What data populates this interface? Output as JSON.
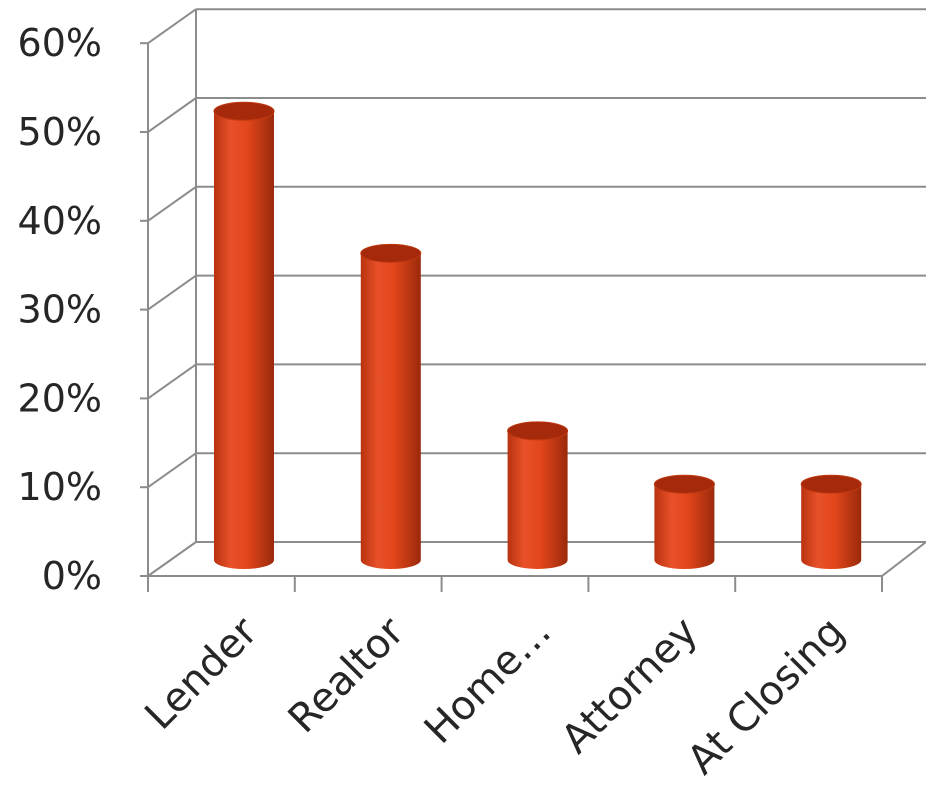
{
  "chart_data": {
    "type": "bar",
    "style": "3d-cylinder",
    "categories": [
      "Lender",
      "Realtor",
      "Home…",
      "Attorney",
      "At Closing"
    ],
    "values": [
      52,
      36,
      16,
      10,
      10
    ],
    "yunit": "%",
    "ylim": [
      0,
      60
    ],
    "yticks": [
      0,
      10,
      20,
      30,
      40,
      50,
      60
    ],
    "ytick_labels": [
      "0%",
      "10%",
      "20%",
      "30%",
      "40%",
      "50%",
      "60%"
    ],
    "grid": true,
    "legend": "none",
    "colors": {
      "bar": "#e04a1e",
      "bar_dark": "#a52a0c",
      "bar_light": "#ee6a3c",
      "grid": "#8c8c8c",
      "text": "#262626"
    }
  }
}
